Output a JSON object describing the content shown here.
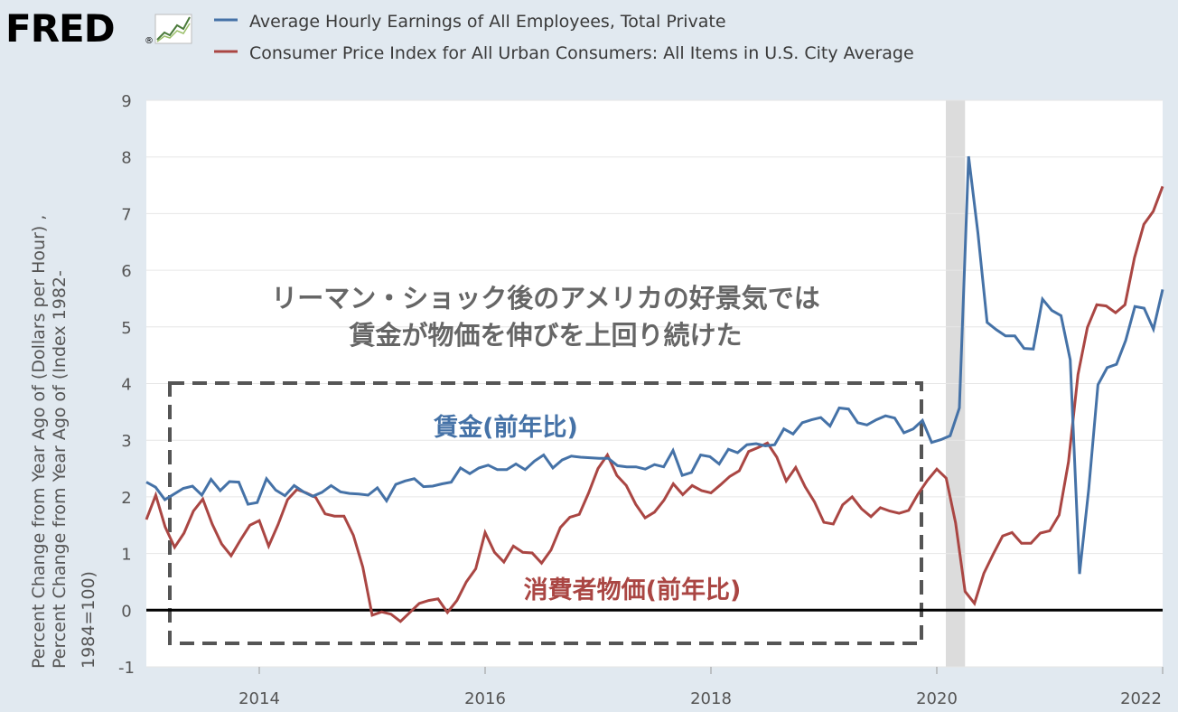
{
  "header": {
    "brand": "FRED",
    "registered": "®"
  },
  "chart_data": {
    "type": "line",
    "colors": {
      "wages": "#4572a7",
      "cpi": "#aa4643",
      "recession": "#dcdcdc"
    },
    "ylim": [
      -1,
      9
    ],
    "yticks": [
      "9",
      "8",
      "7",
      "6",
      "5",
      "4",
      "3",
      "2",
      "1",
      "0",
      "-1"
    ],
    "xticks": [
      "2014",
      "2016",
      "2018",
      "2020",
      "2022"
    ],
    "xlim": [
      2013.0,
      2022.0
    ],
    "ylabel_lines": [
      "Percent Change from Year Ago of (Dollars per Hour) ,",
      "Percent Change from Year Ago of (Index 1982-",
      "1984=100)"
    ],
    "recession": [
      2020.08,
      2020.25
    ],
    "annotation_lines": [
      "リーマン・ショック後のアメリカの好景気では",
      "賃金が物価を伸びを上回り続けた"
    ],
    "series": [
      {
        "name": "Average Hourly Earnings of All Employees, Total Private",
        "label": "賃金(前年比)",
        "values": [
          2.26,
          2.17,
          1.95,
          2.05,
          2.15,
          2.19,
          2.03,
          2.31,
          2.11,
          2.27,
          2.26,
          1.87,
          1.9,
          2.32,
          2.12,
          2.02,
          2.2,
          2.09,
          2.01,
          2.08,
          2.2,
          2.09,
          2.06,
          2.05,
          2.03,
          2.16,
          1.93,
          2.22,
          2.28,
          2.32,
          2.18,
          2.19,
          2.23,
          2.26,
          2.51,
          2.41,
          2.51,
          2.56,
          2.48,
          2.48,
          2.58,
          2.48,
          2.63,
          2.74,
          2.51,
          2.65,
          2.72,
          2.7,
          2.69,
          2.68,
          2.68,
          2.55,
          2.53,
          2.53,
          2.49,
          2.57,
          2.53,
          2.82,
          2.38,
          2.43,
          2.74,
          2.71,
          2.58,
          2.84,
          2.78,
          2.92,
          2.94,
          2.9,
          2.92,
          3.2,
          3.11,
          3.31,
          3.36,
          3.4,
          3.25,
          3.57,
          3.55,
          3.31,
          3.27,
          3.36,
          3.43,
          3.39,
          3.13,
          3.2,
          3.35,
          2.96,
          3.01,
          3.08,
          3.57,
          8.01,
          6.66,
          5.08,
          4.95,
          4.84,
          4.84,
          4.62,
          4.61,
          5.49,
          5.29,
          5.2,
          4.42,
          0.64,
          2.14,
          3.98,
          4.28,
          4.34,
          4.76,
          5.36,
          5.33,
          4.96,
          5.66
        ]
      },
      {
        "name": "Consumer Price Index for All Urban Consumers: All Items in U.S. City Average",
        "label": "消費者物価(前年比)",
        "values": [
          1.6,
          2.03,
          1.47,
          1.11,
          1.36,
          1.75,
          1.96,
          1.52,
          1.17,
          0.96,
          1.24,
          1.5,
          1.58,
          1.13,
          1.51,
          1.95,
          2.13,
          2.07,
          1.99,
          1.7,
          1.66,
          1.66,
          1.32,
          0.76,
          -0.09,
          -0.03,
          -0.07,
          -0.2,
          -0.04,
          0.12,
          0.17,
          0.2,
          -0.04,
          0.17,
          0.5,
          0.73,
          1.37,
          1.02,
          0.85,
          1.13,
          1.02,
          1.01,
          0.83,
          1.06,
          1.46,
          1.64,
          1.69,
          2.07,
          2.5,
          2.74,
          2.38,
          2.2,
          1.87,
          1.63,
          1.73,
          1.94,
          2.23,
          2.04,
          2.2,
          2.11,
          2.07,
          2.21,
          2.36,
          2.46,
          2.8,
          2.87,
          2.95,
          2.7,
          2.28,
          2.52,
          2.18,
          1.91,
          1.55,
          1.52,
          1.86,
          2.0,
          1.79,
          1.65,
          1.81,
          1.75,
          1.71,
          1.76,
          2.05,
          2.29,
          2.49,
          2.33,
          1.54,
          0.33,
          0.12,
          0.65,
          0.99,
          1.31,
          1.37,
          1.18,
          1.18,
          1.36,
          1.4,
          1.68,
          2.62,
          4.16,
          4.99,
          5.39,
          5.37,
          5.25,
          5.39,
          6.22,
          6.81,
          7.04,
          7.48
        ]
      }
    ]
  }
}
